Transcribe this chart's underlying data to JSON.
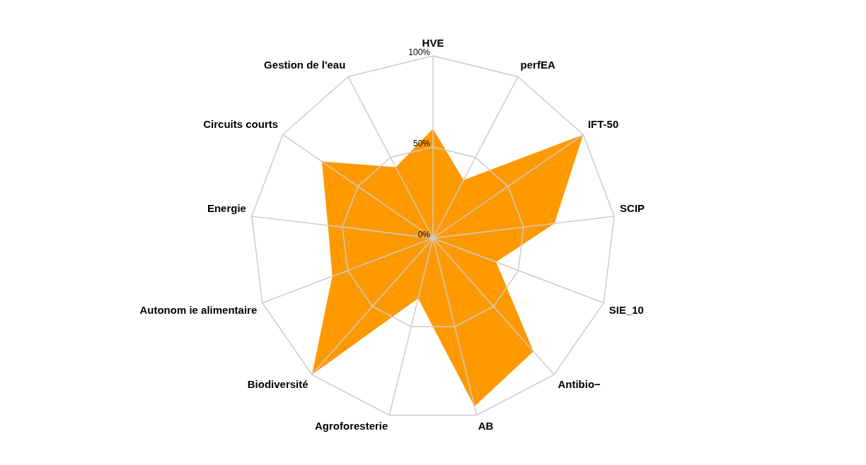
{
  "chart_data": {
    "type": "radar",
    "categories": [
      "HVE",
      "perfEA",
      "IFT-50",
      "SCIP",
      "SIE_10",
      "Antibio−",
      "AB",
      "Agroforesterie",
      "Biodiversité",
      "Autonom ie alimentaire",
      "Energie",
      "Circuits courts",
      "Gestion de l'eau"
    ],
    "series": [
      {
        "color": "#ff9900",
        "values": [
          60,
          36,
          100,
          67,
          37,
          83,
          95,
          34,
          100,
          59,
          58,
          74,
          44
        ]
      }
    ],
    "ylim": [
      0,
      100
    ],
    "yticks": [
      {
        "value": 0,
        "label": "0%"
      },
      {
        "value": 50,
        "label": "50%"
      },
      {
        "value": 100,
        "label": "100%"
      }
    ],
    "grid": true,
    "legend": false,
    "marker": "none"
  }
}
